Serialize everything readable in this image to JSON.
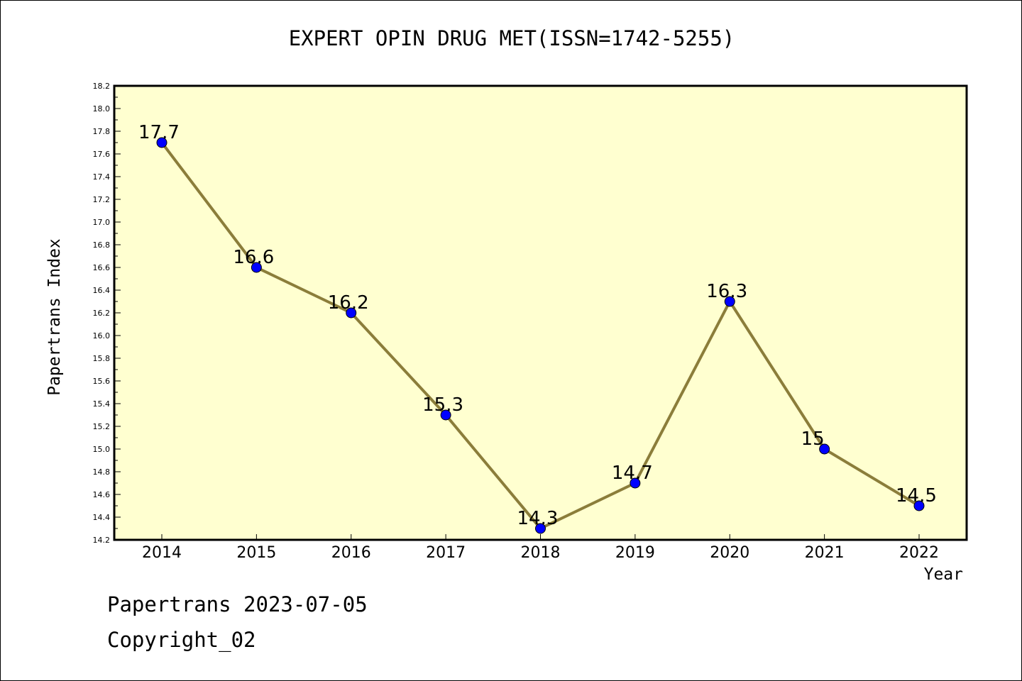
{
  "chart_data": {
    "type": "line",
    "title": "EXPERT OPIN DRUG MET(ISSN=1742-5255)",
    "xlabel": "Year",
    "ylabel": "Papertrans Index",
    "x": [
      "2014",
      "2015",
      "2016",
      "2017",
      "2018",
      "2019",
      "2020",
      "2021",
      "2022"
    ],
    "series": [
      {
        "values": [
          17.7,
          16.6,
          16.2,
          15.3,
          14.3,
          14.7,
          16.3,
          15.0,
          14.5
        ],
        "data_labels": [
          "17.7",
          "16.6",
          "16.2",
          "15.3",
          "14.3",
          "14.7",
          "16.3",
          "15",
          "14.5"
        ]
      }
    ],
    "ylim": [
      14.2,
      18.2
    ],
    "y_ticks": [
      "14.2",
      "14.4",
      "14.6",
      "14.8",
      "15.0",
      "15.2",
      "15.4",
      "15.6",
      "15.8",
      "16.0",
      "16.2",
      "16.4",
      "16.6",
      "16.8",
      "17.0",
      "17.2",
      "17.4",
      "17.6",
      "17.8",
      "18.0",
      "18.2"
    ],
    "grid": false,
    "colors": {
      "plot_background": "#ffffd0",
      "line": "#8b7d3a",
      "marker": "#0000ff"
    }
  },
  "footer": {
    "line1": "Papertrans 2023-07-05",
    "line2": "Copyright_02"
  }
}
